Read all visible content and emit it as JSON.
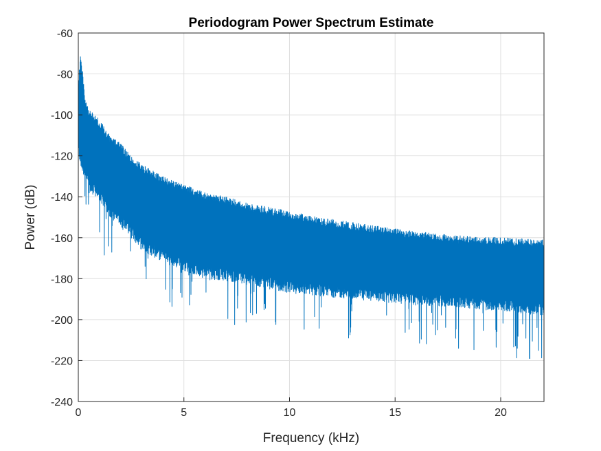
{
  "chart_data": {
    "type": "line",
    "title": "Periodogram Power Spectrum Estimate",
    "xlabel": "Frequency (kHz)",
    "ylabel": "Power (dB)",
    "xlim": [
      0,
      22.05
    ],
    "ylim": [
      -240,
      -60
    ],
    "x_ticks": [
      0,
      5,
      10,
      15,
      20
    ],
    "y_ticks": [
      -240,
      -220,
      -200,
      -180,
      -160,
      -140,
      -120,
      -100,
      -80,
      -60
    ],
    "grid": true,
    "legend": "none",
    "series": [
      {
        "color": "#0072BD",
        "envelope": {
          "x": [
            0,
            0.1,
            0.2,
            0.3,
            0.5,
            0.75,
            1,
            1.5,
            2,
            2.5,
            3,
            4,
            5,
            6,
            7,
            8,
            10,
            12,
            14,
            16,
            18,
            20,
            22.05
          ],
          "upper": [
            -85,
            -70,
            -78,
            -90,
            -97,
            -100,
            -102,
            -110,
            -114,
            -120,
            -124,
            -130,
            -134,
            -138,
            -140,
            -143,
            -147,
            -151,
            -154,
            -157,
            -159,
            -160,
            -161
          ],
          "lower": [
            -120,
            -125,
            -128,
            -130,
            -138,
            -140,
            -142,
            -150,
            -155,
            -160,
            -166,
            -172,
            -176,
            -180,
            -181,
            -183,
            -187,
            -189,
            -191,
            -193,
            -194,
            -196,
            -198
          ],
          "min_spikes": [
            -133,
            -137,
            -141,
            -146,
            -158,
            -162,
            -165,
            -173,
            -178,
            -182,
            -188,
            -193,
            -198,
            -201,
            -202,
            -204,
            -208,
            -210,
            -212,
            -214,
            -216,
            -218,
            -220
          ]
        }
      }
    ]
  }
}
